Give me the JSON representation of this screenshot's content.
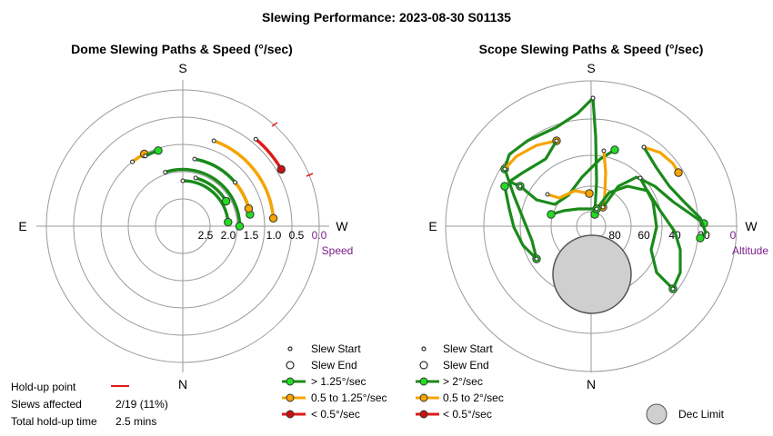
{
  "title": "Slewing Performance: 2023-08-30 S01135",
  "colors": {
    "fast": "#1a8a1a",
    "mid": "#f5a400",
    "slow": "#e01a1a",
    "grid": "#9a9a9a",
    "purple": "#7a1f8a",
    "limit": "#cfcfcf"
  },
  "dome": {
    "title": "Dome Slewing Paths & Speed (°/sec)",
    "cardinals": {
      "top": "S",
      "bottom": "N",
      "left": "E",
      "right": "W"
    },
    "axis_label": "Speed",
    "legend": {
      "start": "Slew Start",
      "end": "Slew End",
      "fast": "> 1.25°/sec",
      "mid": "0.5 to 1.25°/sec",
      "slow": "< 0.5°/sec"
    }
  },
  "scope": {
    "title": "Scope Slewing Paths & Speed (°/sec)",
    "cardinals": {
      "top": "S",
      "bottom": "N",
      "left": "E",
      "right": "W"
    },
    "axis_label": "Altitude",
    "dec_limit_label": "Dec Limit",
    "legend": {
      "start": "Slew Start",
      "end": "Slew End",
      "fast": "> 2°/sec",
      "mid": "0.5 to 2°/sec",
      "slow": "< 0.5°/sec"
    }
  },
  "summary": {
    "holdup_label": "Hold-up point",
    "slews_label": "Slews affected",
    "slews_value": "2/19 (11%)",
    "time_label": "Total hold-up time",
    "time_value": "2.5 mins"
  },
  "chart_data": [
    {
      "type": "polar",
      "title": "Dome Slewing Paths & Speed (°/sec)",
      "radial_axis": "Speed",
      "ticks": [
        "2.5",
        "2.0",
        "1.5",
        "1.0",
        "0.5",
        "0.0"
      ],
      "tick_values": [
        2.5,
        2.0,
        1.5,
        1.0,
        0.5,
        0.0
      ],
      "grid": true,
      "paths": [
        {
          "speed": "mid",
          "r": 1.0,
          "from": 110,
          "to": 175
        },
        {
          "speed": "slow",
          "r": 0.5,
          "from": 130,
          "to": 150
        },
        {
          "speed": "fast",
          "r": 1.5,
          "from": 100,
          "to": 170
        },
        {
          "speed": "mid",
          "r": 1.5,
          "from": 140,
          "to": 165
        },
        {
          "speed": "fast",
          "r": 2.0,
          "from": 90,
          "to": 175
        },
        {
          "speed": "fast",
          "r": 1.75,
          "from": 72,
          "to": 180
        },
        {
          "speed": "fast",
          "r": 1.9,
          "from": 105,
          "to": 150
        },
        {
          "speed": "mid",
          "r": 1.2,
          "from": 52,
          "to": 62
        },
        {
          "speed": "fast",
          "r": 1.25,
          "from": 62,
          "to": 72
        }
      ]
    },
    {
      "type": "polar",
      "title": "Scope Slewing Paths & Speed (°/sec)",
      "radial_axis": "Altitude",
      "ticks": [
        "80",
        "60",
        "40",
        "20",
        "0"
      ],
      "tick_values": [
        80,
        60,
        40,
        20,
        0
      ],
      "grid": true,
      "dec_limit": true
    }
  ]
}
